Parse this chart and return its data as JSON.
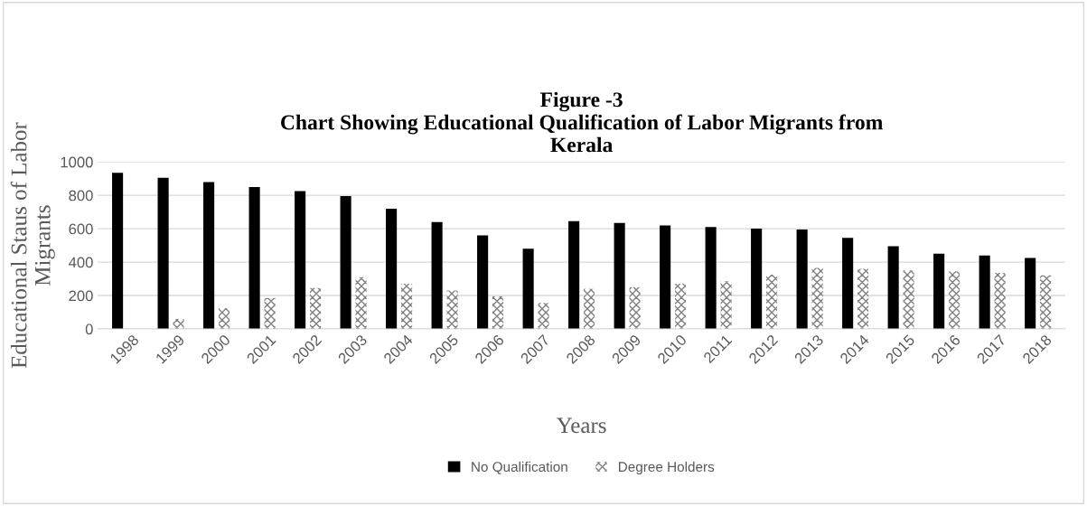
{
  "chart_data": {
    "type": "bar",
    "title": "Figure -3\nChart Showing Educational Qualification of Labor Migrants from\nKerala",
    "xlabel": "Years",
    "ylabel": "Educational Staus of Labor\nMigrants",
    "categories": [
      "1998",
      "1999",
      "2000",
      "2001",
      "2002",
      "2003",
      "2004",
      "2005",
      "2006",
      "2007",
      "2008",
      "2009",
      "2010",
      "2011",
      "2012",
      "2013",
      "2014",
      "2015",
      "2016",
      "2017",
      "2018"
    ],
    "series": [
      {
        "name": "No Qualification",
        "color": "#000000",
        "values": [
          935,
          905,
          880,
          850,
          825,
          795,
          720,
          640,
          560,
          480,
          645,
          635,
          620,
          610,
          600,
          595,
          545,
          495,
          450,
          440,
          425
        ]
      },
      {
        "name": "Degree Holders",
        "color": "#808080",
        "values": [
          null,
          60,
          125,
          185,
          245,
          310,
          270,
          230,
          195,
          155,
          240,
          250,
          270,
          285,
          325,
          365,
          360,
          350,
          345,
          335,
          320
        ]
      }
    ],
    "ylim": [
      0,
      1000
    ],
    "yticks": [
      0,
      200,
      400,
      600,
      800,
      1000
    ],
    "grid": "y",
    "legend": "bottom"
  }
}
